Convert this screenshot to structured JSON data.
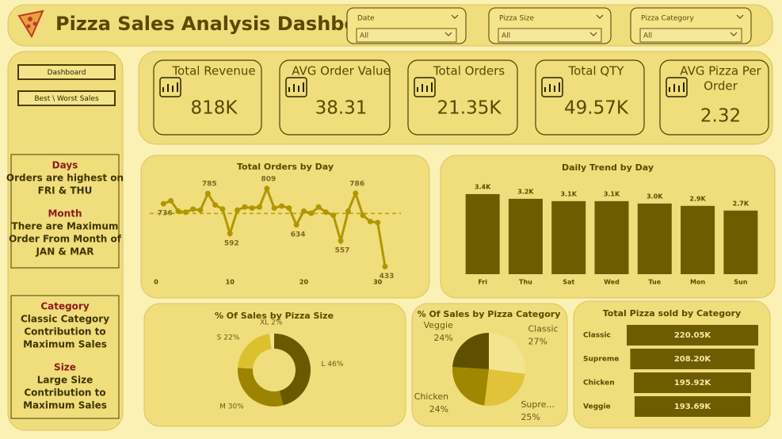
{
  "header": {
    "title": "Pizza Sales Analysis Dashboard"
  },
  "filters": [
    {
      "label": "Date",
      "value": "All"
    },
    {
      "label": "Pizza Size",
      "value": "All"
    },
    {
      "label": "Pizza Category",
      "value": "All"
    }
  ],
  "nav": [
    "Dashboard",
    "Best \\ Worst Sales"
  ],
  "kpis": [
    {
      "label": [
        "Total Revenue"
      ],
      "value": "818K"
    },
    {
      "label": [
        "AVG Order Value"
      ],
      "value": "38.31"
    },
    {
      "label": [
        "Total Orders"
      ],
      "value": "21.35K"
    },
    {
      "label": [
        "Total QTY"
      ],
      "value": "49.57K"
    },
    {
      "label": [
        "AVG Pizza Per",
        "Order"
      ],
      "value": "2.32"
    }
  ],
  "notes": [
    {
      "heading": "Days",
      "lines": [
        "Orders are highest on",
        "FRI & THU"
      ]
    },
    {
      "heading": "Month",
      "lines": [
        "There are Maximum",
        "Order From Month of",
        "JAN & MAR"
      ]
    },
    {
      "heading": "Category",
      "lines": [
        "Classic Category",
        "Contribution to",
        "Maximum Sales"
      ]
    },
    {
      "heading": "Size",
      "lines": [
        "Large Size",
        "Contribution to",
        "Maximum Sales"
      ]
    }
  ],
  "chart_data": [
    {
      "type": "line",
      "title": "Total Orders by Day",
      "x": [
        1,
        2,
        3,
        4,
        5,
        6,
        7,
        8,
        9,
        10,
        11,
        12,
        13,
        14,
        15,
        16,
        17,
        18,
        19,
        20,
        21,
        22,
        23,
        24,
        25,
        26,
        27,
        28,
        29,
        30,
        31
      ],
      "values": [
        736,
        750,
        700,
        695,
        710,
        705,
        785,
        730,
        710,
        592,
        705,
        720,
        715,
        720,
        809,
        715,
        725,
        715,
        634,
        700,
        690,
        720,
        695,
        680,
        557,
        700,
        786,
        680,
        650,
        645,
        433
      ],
      "value_labels": [
        "736",
        null,
        null,
        null,
        null,
        null,
        "785",
        null,
        null,
        "592",
        null,
        null,
        null,
        null,
        "809",
        null,
        null,
        null,
        "634",
        null,
        null,
        null,
        null,
        null,
        "557",
        null,
        "786",
        null,
        null,
        null,
        "433"
      ],
      "reference_line": 689,
      "color": "#b09700",
      "xlim": [
        0,
        31
      ],
      "xticks": [
        0,
        10,
        20,
        30
      ],
      "ylim": [
        400,
        870
      ]
    },
    {
      "type": "bar",
      "title": "Daily Trend by Day",
      "categories": [
        "Fri",
        "Thu",
        "Sat",
        "Wed",
        "Tue",
        "Mon",
        "Sun"
      ],
      "values": [
        3400,
        3200,
        3100,
        3100,
        3000,
        2900,
        2700
      ],
      "value_labels": [
        "3.4K",
        "3.2K",
        "3.1K",
        "3.1K",
        "3.0K",
        "2.9K",
        "2.7K"
      ],
      "color": "#6e5c00",
      "ylim": [
        0,
        3600
      ]
    },
    {
      "type": "pie",
      "donut": true,
      "title": "% Of Sales by Pizza Size",
      "values": [
        46,
        30,
        22,
        2
      ],
      "value_labels": [
        "L 46%",
        "M 30%",
        "S 22%",
        "XL 2%"
      ],
      "colors": [
        "#6b5900",
        "#9c8400",
        "#dcc12e",
        "#f2e38e"
      ]
    },
    {
      "type": "pie",
      "donut": false,
      "title": "% Of Sales by Pizza Category",
      "categories": [
        "Classic",
        "Supre...",
        "Chicken",
        "Veggie"
      ],
      "values": [
        27,
        25,
        24,
        24
      ],
      "value_labels": [
        "27%",
        "25%",
        "24%",
        "24%"
      ],
      "colors": [
        "#f3e490",
        "#e1c33a",
        "#a08700",
        "#5f5000"
      ]
    },
    {
      "type": "funnel",
      "title": "Total Pizza sold by Category",
      "categories": [
        "Classic",
        "Supreme",
        "Chicken",
        "Veggie"
      ],
      "values": [
        220050,
        208200,
        195920,
        193690
      ],
      "value_labels": [
        "220.05K",
        "208.20K",
        "195.92K",
        "193.69K"
      ],
      "color": "#6e5c00"
    }
  ]
}
